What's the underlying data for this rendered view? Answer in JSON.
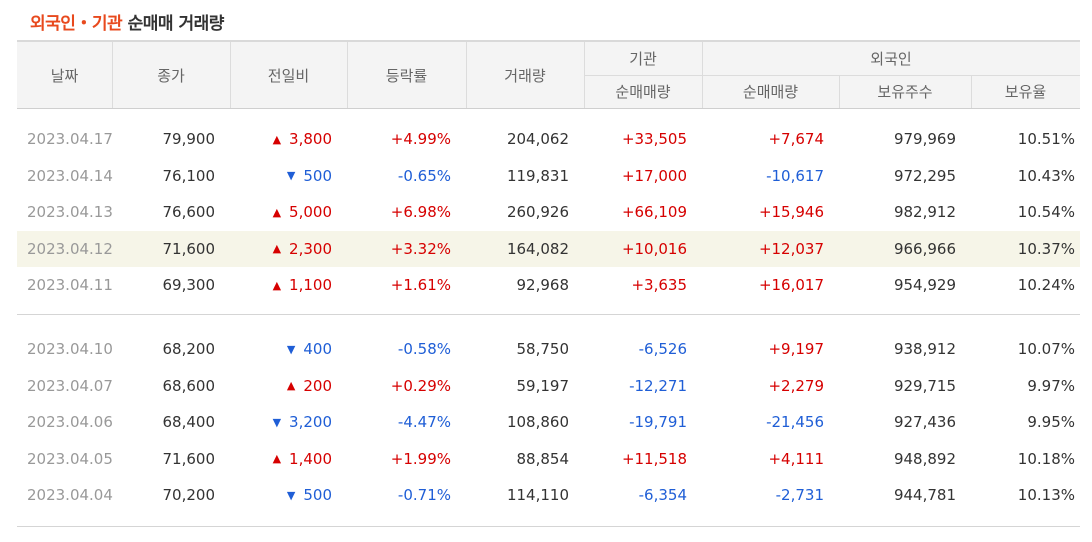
{
  "title": {
    "highlight": "외국인・기관",
    "rest": "순매매 거래량"
  },
  "headers": {
    "date": "날짜",
    "close": "종가",
    "change": "전일비",
    "rate": "등락률",
    "volume": "거래량",
    "institution_group": "기관",
    "institution_net": "순매매량",
    "foreign_group": "외국인",
    "foreign_net": "순매매량",
    "foreign_holdings": "보유주수",
    "foreign_ratio": "보유율"
  },
  "colors": {
    "up": "#d60000",
    "down": "#1f5ed6",
    "accent": "#e8491d",
    "selected_row": "#f6f5e8"
  },
  "groups": [
    {
      "rows": [
        {
          "date": "2023.04.17",
          "close": "79,900",
          "dir": "up",
          "arrow": "▲",
          "change": "3,800",
          "rate": "+4.99%",
          "volume": "204,062",
          "inst": "+33,505",
          "inst_dir": "up",
          "foreign": "+7,674",
          "foreign_dir": "up",
          "holdings": "979,969",
          "ratio": "10.51%"
        },
        {
          "date": "2023.04.14",
          "close": "76,100",
          "dir": "down",
          "arrow": "▼",
          "change": "500",
          "rate": "-0.65%",
          "volume": "119,831",
          "inst": "+17,000",
          "inst_dir": "up",
          "foreign": "-10,617",
          "foreign_dir": "down",
          "holdings": "972,295",
          "ratio": "10.43%"
        },
        {
          "date": "2023.04.13",
          "close": "76,600",
          "dir": "up",
          "arrow": "▲",
          "change": "5,000",
          "rate": "+6.98%",
          "volume": "260,926",
          "inst": "+66,109",
          "inst_dir": "up",
          "foreign": "+15,946",
          "foreign_dir": "up",
          "holdings": "982,912",
          "ratio": "10.54%"
        },
        {
          "date": "2023.04.12",
          "close": "71,600",
          "dir": "up",
          "arrow": "▲",
          "change": "2,300",
          "rate": "+3.32%",
          "volume": "164,082",
          "inst": "+10,016",
          "inst_dir": "up",
          "foreign": "+12,037",
          "foreign_dir": "up",
          "holdings": "966,966",
          "ratio": "10.37%",
          "selected": true
        },
        {
          "date": "2023.04.11",
          "close": "69,300",
          "dir": "up",
          "arrow": "▲",
          "change": "1,100",
          "rate": "+1.61%",
          "volume": "92,968",
          "inst": "+3,635",
          "inst_dir": "up",
          "foreign": "+16,017",
          "foreign_dir": "up",
          "holdings": "954,929",
          "ratio": "10.24%"
        }
      ]
    },
    {
      "rows": [
        {
          "date": "2023.04.10",
          "close": "68,200",
          "dir": "down",
          "arrow": "▼",
          "change": "400",
          "rate": "-0.58%",
          "volume": "58,750",
          "inst": "-6,526",
          "inst_dir": "down",
          "foreign": "+9,197",
          "foreign_dir": "up",
          "holdings": "938,912",
          "ratio": "10.07%"
        },
        {
          "date": "2023.04.07",
          "close": "68,600",
          "dir": "up",
          "arrow": "▲",
          "change": "200",
          "rate": "+0.29%",
          "volume": "59,197",
          "inst": "-12,271",
          "inst_dir": "down",
          "foreign": "+2,279",
          "foreign_dir": "up",
          "holdings": "929,715",
          "ratio": "9.97%"
        },
        {
          "date": "2023.04.06",
          "close": "68,400",
          "dir": "down",
          "arrow": "▼",
          "change": "3,200",
          "rate": "-4.47%",
          "volume": "108,860",
          "inst": "-19,791",
          "inst_dir": "down",
          "foreign": "-21,456",
          "foreign_dir": "down",
          "holdings": "927,436",
          "ratio": "9.95%"
        },
        {
          "date": "2023.04.05",
          "close": "71,600",
          "dir": "up",
          "arrow": "▲",
          "change": "1,400",
          "rate": "+1.99%",
          "volume": "88,854",
          "inst": "+11,518",
          "inst_dir": "up",
          "foreign": "+4,111",
          "foreign_dir": "up",
          "holdings": "948,892",
          "ratio": "10.18%"
        },
        {
          "date": "2023.04.04",
          "close": "70,200",
          "dir": "down",
          "arrow": "▼",
          "change": "500",
          "rate": "-0.71%",
          "volume": "114,110",
          "inst": "-6,354",
          "inst_dir": "down",
          "foreign": "-2,731",
          "foreign_dir": "down",
          "holdings": "944,781",
          "ratio": "10.13%"
        }
      ]
    }
  ]
}
